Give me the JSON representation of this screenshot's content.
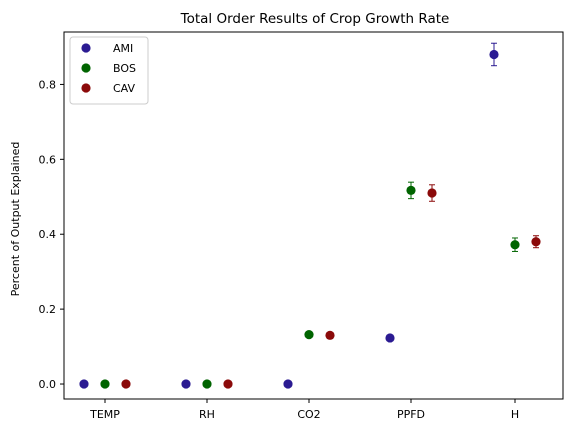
{
  "chart_data": {
    "type": "scatter",
    "title": "Total Order Results of Crop Growth Rate",
    "xlabel": "",
    "ylabel": "Percent of Output Explained",
    "categories": [
      "TEMP",
      "RH",
      "CO2",
      "PPFD",
      "H"
    ],
    "ylim": [
      -0.04,
      0.94
    ],
    "yticks": [
      0.0,
      0.2,
      0.4,
      0.6,
      0.8
    ],
    "ytick_labels": [
      "0.0",
      "0.2",
      "0.4",
      "0.6",
      "0.8"
    ],
    "grid": false,
    "legend_position": "top-left",
    "series": [
      {
        "name": "AMI",
        "color": "#2b1b92",
        "values": [
          0.0,
          0.0,
          0.0,
          0.123,
          0.88
        ],
        "errors": [
          0,
          0,
          0,
          0,
          0.03
        ]
      },
      {
        "name": "BOS",
        "color": "#006400",
        "values": [
          0.0,
          0.0,
          0.132,
          0.517,
          0.372
        ],
        "errors": [
          0,
          0,
          0,
          0.022,
          0.018
        ]
      },
      {
        "name": "CAV",
        "color": "#8b0a0a",
        "values": [
          0.0,
          0.0,
          0.13,
          0.51,
          0.38
        ],
        "errors": [
          0,
          0,
          0,
          0.022,
          0.016
        ]
      }
    ]
  }
}
